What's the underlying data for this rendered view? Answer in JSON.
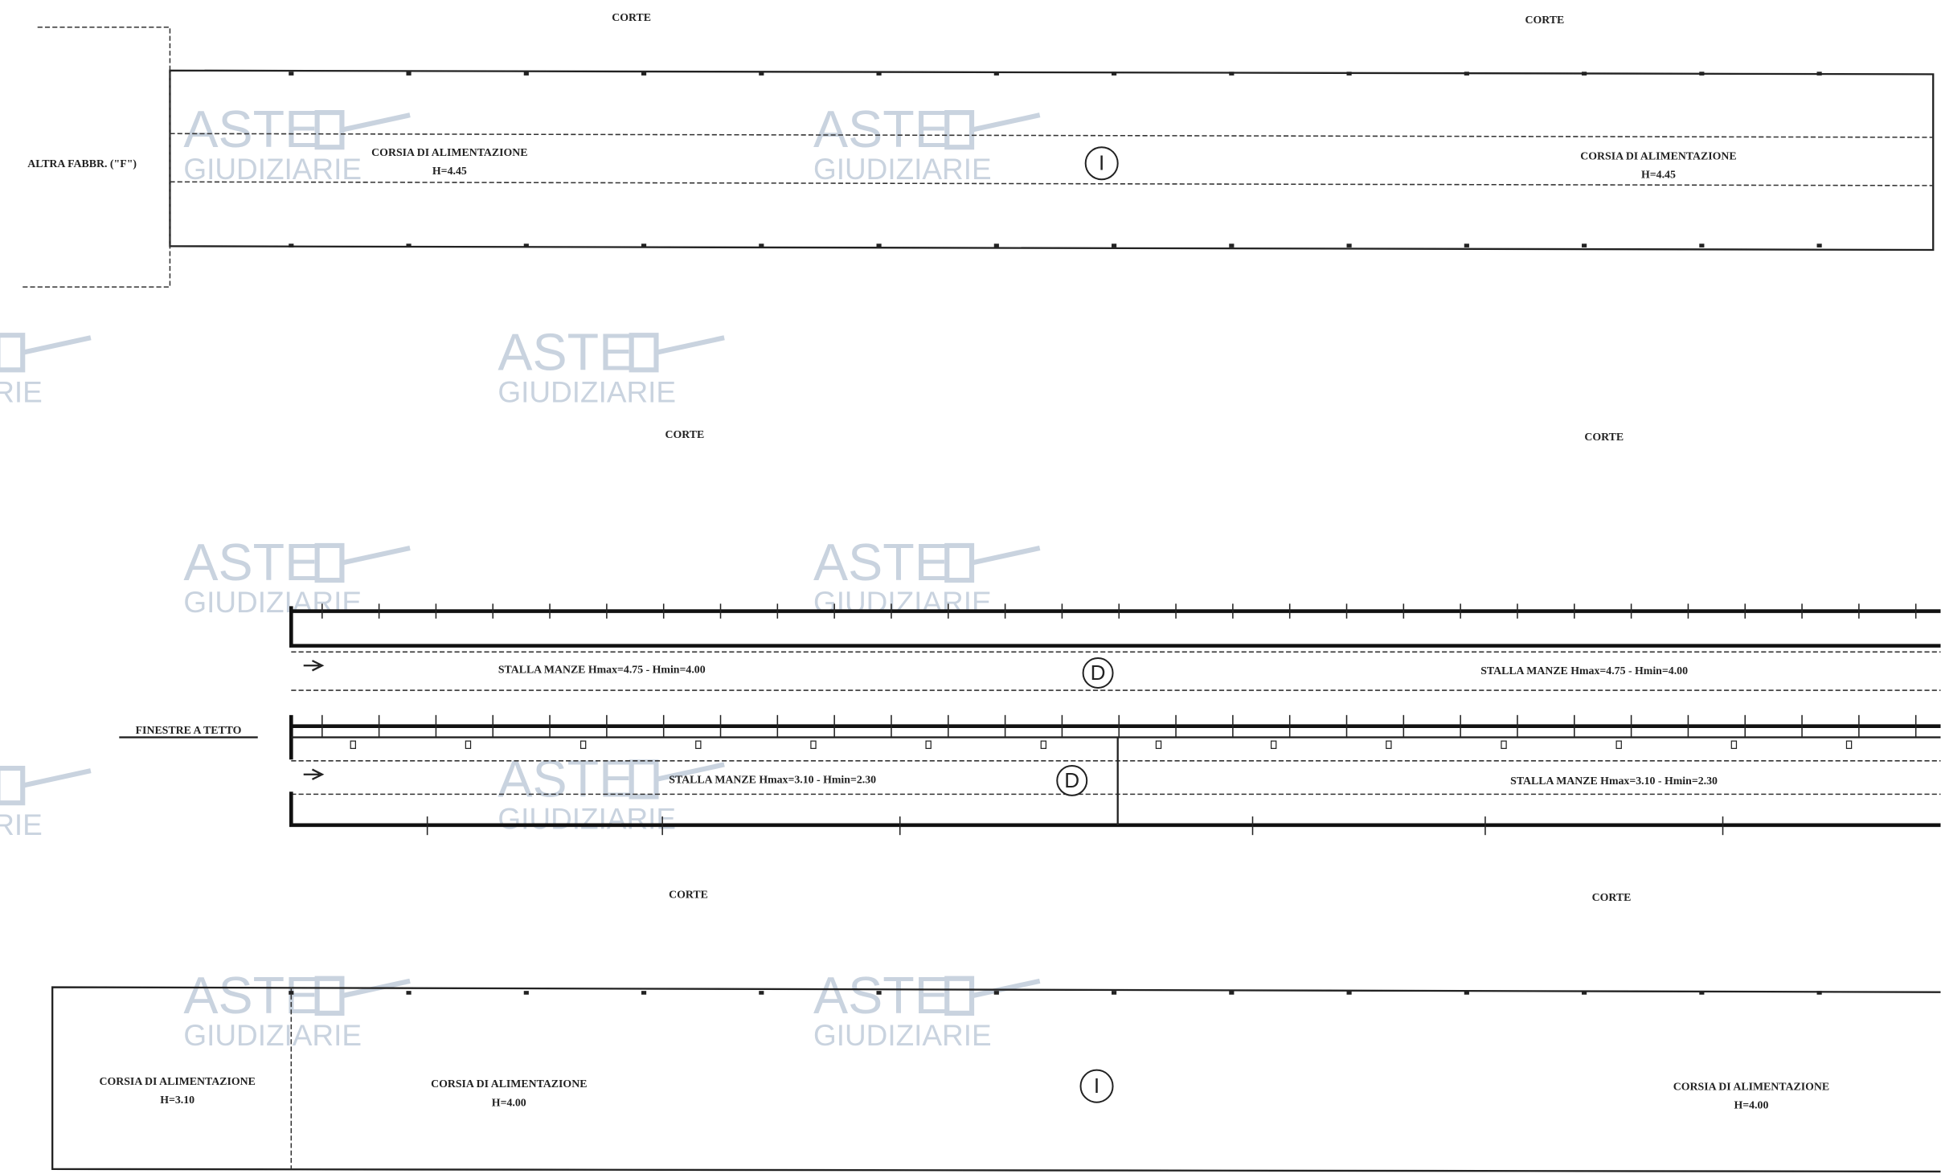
{
  "drawing": {
    "corte_labels": [
      "CORTE",
      "CORTE",
      "CORTE",
      "CORTE",
      "CORTE",
      "CORTE"
    ],
    "building_1": {
      "neighbor": "ALTRA FABBR. (\"F\")",
      "lanes": [
        {
          "name": "CORSIA DI ALIMENTAZIONE",
          "height": "H=4.45"
        },
        {
          "name": "CORSIA DI ALIMENTAZIONE",
          "height": "H=4.45"
        }
      ],
      "marker": "I"
    },
    "building_2": {
      "upper_stalls": [
        "STALLA MANZE  Hmax=4.75  -  Hmin=4.00",
        "STALLA MANZE  Hmax=4.75  -  Hmin=4.00"
      ],
      "upper_marker": "D",
      "windows": "FINESTRE A TETTO",
      "lower_stalls": [
        "STALLA MANZE  Hmax=3.10  -  Hmin=2.30",
        "STALLA MANZE  Hmax=3.10  -  Hmin=2.30"
      ],
      "lower_marker": "D"
    },
    "building_3": {
      "lanes": [
        {
          "name": "CORSIA DI ALIMENTAZIONE",
          "height": "H=3.10"
        },
        {
          "name": "CORSIA DI ALIMENTAZIONE",
          "height": "H=4.00"
        },
        {
          "name": "CORSIA DI ALIMENTAZIONE",
          "height": "H=4.00"
        }
      ],
      "marker": "I"
    },
    "watermark": {
      "line1": "ASTE",
      "line2": "GIUDIZIARIE"
    }
  }
}
